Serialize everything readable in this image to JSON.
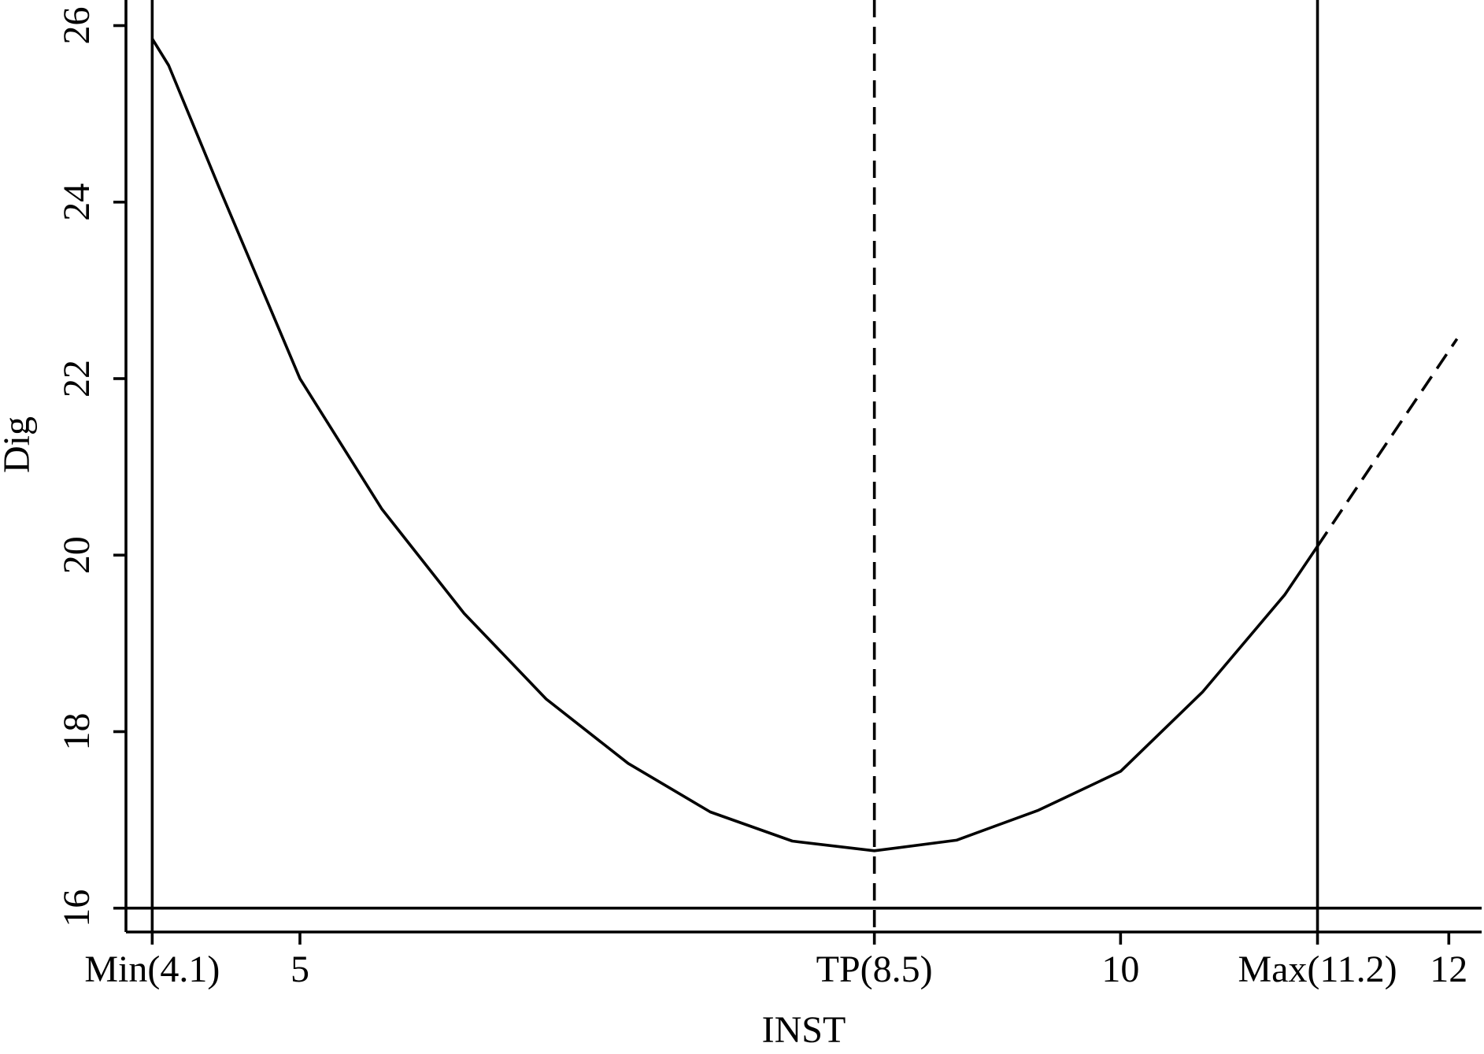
{
  "chart_data": {
    "type": "line",
    "x_label": "INST",
    "y_label": "Dig",
    "x": [
      4.1,
      4.2,
      4.5,
      5,
      5.5,
      6,
      6.5,
      7,
      7.5,
      8,
      8.5,
      9,
      9.5,
      10,
      10.5,
      11,
      11.2,
      11.6,
      12.05
    ],
    "series": [
      {
        "color": "#000000",
        "dashed": false,
        "values": [
          25.85,
          25.55,
          24.2,
          22.0,
          20.52,
          19.34,
          18.37,
          17.64,
          17.09,
          16.76,
          16.65,
          16.77,
          17.11,
          17.55,
          18.45,
          19.55,
          20.1,
          null,
          null
        ]
      },
      {
        "color": "#000000",
        "dashed": true,
        "values": [
          null,
          null,
          null,
          null,
          null,
          null,
          null,
          null,
          null,
          null,
          null,
          null,
          null,
          null,
          null,
          null,
          20.1,
          21.21,
          22.45
        ]
      }
    ],
    "xlim": [
      3.94,
      12.2
    ],
    "ylim": [
      15.73,
      26.29
    ],
    "xticks": [
      {
        "value": 4.1,
        "label": "Min(4.1)"
      },
      5,
      {
        "value": 8.5,
        "label": "TP(8.5)"
      },
      10,
      {
        "value": 11.2,
        "label": "Max(11.2)"
      },
      12
    ],
    "yticks": [
      16,
      18,
      20,
      22,
      24,
      26
    ],
    "vlines": [
      4.1,
      8.5,
      11.2
    ],
    "vline_dashed": [
      false,
      true,
      false
    ],
    "hline": 16
  }
}
